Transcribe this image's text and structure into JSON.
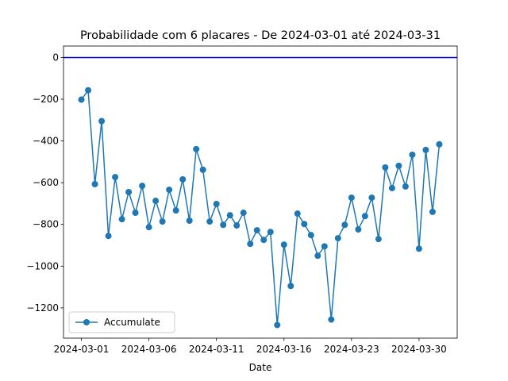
{
  "chart_data": {
    "type": "line",
    "title": "Probabilidade com 6 placares - De 2024-03-01 até 2024-03-31",
    "x_label": "Date",
    "categories": [
      "2024-03-01",
      null,
      null,
      null,
      null,
      null,
      null,
      null,
      null,
      null,
      "2024-03-06",
      null,
      null,
      null,
      null,
      null,
      null,
      null,
      null,
      null,
      "2024-03-11",
      null,
      null,
      null,
      null,
      null,
      null,
      null,
      null,
      null,
      "2024-03-16",
      null,
      null,
      null,
      null,
      null,
      null,
      null,
      null,
      null,
      "2024-03-23",
      null,
      null,
      null,
      null,
      null,
      null,
      null,
      null,
      null,
      "2024-03-30",
      null,
      null,
      null
    ],
    "series": [
      {
        "name": "Accumulate",
        "color": "#1f77b4",
        "values": [
          -202,
          -157,
          -607,
          -305,
          -855,
          -573,
          -775,
          -645,
          -744,
          -615,
          -813,
          -687,
          -786,
          -634,
          -733,
          -584,
          -782,
          -439,
          -538,
          -786,
          -702,
          -802,
          -756,
          -805,
          -744,
          -893,
          -828,
          -874,
          -836,
          -1282,
          -897,
          -1095,
          -748,
          -798,
          -851,
          -950,
          -905,
          -1256,
          -866,
          -802,
          -672,
          -824,
          -760,
          -672,
          -870,
          -527,
          -626,
          -519,
          -618,
          -466,
          -916,
          -443,
          -740,
          -416
        ]
      }
    ],
    "hline": {
      "value": 0,
      "color": "#0000cd"
    },
    "ylim": [
      -1345,
      55
    ],
    "yticks": [
      {
        "value": 0,
        "label": "0"
      },
      {
        "value": -200,
        "label": "−200"
      },
      {
        "value": -400,
        "label": "−400"
      },
      {
        "value": -600,
        "label": "−600"
      },
      {
        "value": -800,
        "label": "−800"
      },
      {
        "value": -1000,
        "label": "−1000"
      },
      {
        "value": -1200,
        "label": "−1200"
      }
    ],
    "legend": "lower left"
  }
}
